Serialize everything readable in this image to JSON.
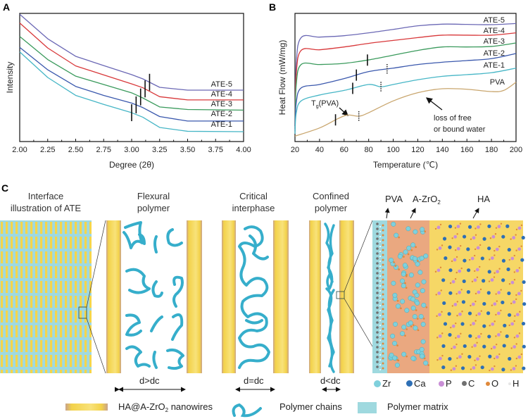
{
  "panels": {
    "a": "A",
    "b": "B",
    "c": "C"
  },
  "chart_data": [
    {
      "type": "line",
      "panel": "A",
      "title": "",
      "xlabel": "Degree (2θ)",
      "ylabel": "Intensity",
      "xlim": [
        2.0,
        4.0
      ],
      "ylim": [
        0,
        100
      ],
      "xticks": [
        "2.00",
        "2.25",
        "2.50",
        "2.75",
        "3.00",
        "3.25",
        "3.50",
        "3.75",
        "4.00"
      ],
      "x": [
        2.0,
        2.25,
        2.5,
        2.75,
        3.0,
        3.1,
        3.25,
        3.5,
        4.0
      ],
      "series": [
        {
          "name": "ATE-5",
          "color": "#6b68b5",
          "values": [
            99.3,
            80.2,
            66.5,
            59.3,
            52.2,
            48.9,
            42.3,
            40.1,
            40.1
          ],
          "marker_x": 3.16
        },
        {
          "name": "ATE-4",
          "color": "#d8383a",
          "values": [
            92.5,
            73,
            59,
            52,
            45,
            42,
            35,
            32.5,
            32.5
          ],
          "marker_x": 3.12
        },
        {
          "name": "ATE-3",
          "color": "#3a9a5c",
          "values": [
            82,
            64,
            51,
            44.5,
            38,
            34,
            27,
            25,
            24.5
          ],
          "marker_x": 3.08
        },
        {
          "name": "ATE-2",
          "color": "#3a58ad",
          "values": [
            73.5,
            56,
            43,
            36,
            30,
            26.5,
            19.5,
            16,
            16
          ],
          "marker_x": 3.04
        },
        {
          "name": "ATE-1",
          "color": "#46b6c6",
          "values": [
            70,
            50,
            36,
            29,
            22.5,
            19,
            11,
            8,
            7.7
          ],
          "marker_x": 3.0
        }
      ],
      "legend": "right, next to curves"
    },
    {
      "type": "line",
      "panel": "B",
      "title": "",
      "xlabel": "Temperature (℃)",
      "ylabel": "Heat Flow (mW/mg)",
      "xlim": [
        20,
        200
      ],
      "ylim": [
        0,
        100
      ],
      "xticks": [
        "20",
        "40",
        "60",
        "80",
        "100",
        "120",
        "140",
        "160",
        "180",
        "200"
      ],
      "series": [
        {
          "name": "ATE-5",
          "color": "#6b68b5",
          "x": [
            20,
            21,
            25,
            40,
            60,
            80,
            100,
            120,
            140,
            160,
            180,
            200
          ],
          "values": [
            12,
            60,
            81.1,
            81.5,
            82.6,
            84.8,
            87.5,
            90.3,
            91.6,
            91.4,
            91.2,
            92.1
          ],
          "solid_marker": null,
          "dotted_marker": null
        },
        {
          "name": "ATE-4",
          "color": "#d8383a",
          "x": [
            20,
            21,
            25,
            40,
            60,
            80,
            100,
            120,
            140,
            160,
            180,
            200
          ],
          "values": [
            12,
            52,
            71.1,
            71.6,
            73.8,
            76.6,
            78.9,
            81.1,
            83,
            83,
            83,
            84.8
          ],
          "solid_marker": null,
          "dotted_marker": null
        },
        {
          "name": "ATE-3",
          "color": "#3a9a5c",
          "x": [
            20,
            21,
            25,
            40,
            60,
            80,
            100,
            120,
            140,
            160,
            180,
            200
          ],
          "values": [
            10,
            44,
            60.1,
            60.1,
            61,
            63.7,
            67.4,
            71.1,
            73.8,
            73.8,
            74.2,
            76.9
          ],
          "solid_marker": 79,
          "dotted_marker": null
        },
        {
          "name": "ATE-2",
          "color": "#3a58ad",
          "x": [
            20,
            21,
            25,
            40,
            60,
            80,
            100,
            120,
            140,
            160,
            180,
            200
          ],
          "values": [
            8,
            30,
            41.8,
            44.5,
            49.1,
            54.6,
            57.3,
            60.1,
            61.9,
            63.2,
            64.7,
            68.7
          ],
          "solid_marker": 70,
          "dotted_marker": 95
        },
        {
          "name": "ATE-1",
          "color": "#46b6c6",
          "x": [
            20,
            21,
            25,
            40,
            60,
            80,
            90,
            100,
            120,
            140,
            160,
            180,
            200
          ],
          "values": [
            6,
            22,
            31.7,
            36.3,
            39.9,
            44.5,
            42.7,
            44.5,
            48.2,
            50.9,
            52.2,
            53.7,
            57.3
          ],
          "solid_marker": 67,
          "dotted_marker": 90
        },
        {
          "name": "PVA",
          "color": "#c9a66e",
          "x": [
            20,
            40,
            55,
            63,
            72,
            80,
            100,
            120,
            140,
            160,
            180,
            190,
            200
          ],
          "values": [
            4.2,
            10.6,
            17.9,
            20.7,
            19.8,
            22.5,
            31.7,
            38.1,
            41.2,
            40.8,
            39,
            39.9,
            46.3
          ],
          "solid_marker": 53,
          "dotted_marker": 72
        }
      ],
      "annotations": {
        "tg_main": "T",
        "tg_sub": "g",
        "tg_rest": "(PVA)",
        "water_line1": "loss of free",
        "water_line2": "or bound water"
      }
    }
  ],
  "panel_c": {
    "titles": [
      {
        "line1": "Interface",
        "line2": "illustration of ATE"
      },
      {
        "line1": "Flexural",
        "line2": "polymer"
      },
      {
        "line1": "Critical",
        "line2": "interphase"
      },
      {
        "line1": "Confined",
        "line2": "polymer"
      }
    ],
    "distances": [
      "d>dc",
      "d=dc",
      "d<dc"
    ],
    "layer_labels": {
      "pva": "PVA",
      "azro_main": "A-ZrO",
      "azro_sub": "2",
      "ha": "HA"
    },
    "atoms": [
      {
        "symbol": "Zr",
        "color": "#7fd0dc"
      },
      {
        "symbol": "Ca",
        "color": "#2e6fb5"
      },
      {
        "symbol": "P",
        "color": "#c98fd6"
      },
      {
        "symbol": "C",
        "color": "#707070"
      },
      {
        "symbol": "O",
        "color": "#e0893a"
      },
      {
        "symbol": "H",
        "color": "#e6e6e6"
      }
    ],
    "legend": {
      "nanowires_main": "HA@A-ZrO",
      "nanowires_sub": "2",
      "nanowires_rest": " nanowires",
      "chains": "Polymer chains",
      "matrix": "Polymer matrix"
    },
    "colors": {
      "matrix": "#9fd9df",
      "chain": "#36aecb",
      "wire": "#f5d54a",
      "wire_edge": "#c9a38a",
      "interphase": "#eaa880",
      "ha": "#f6d766"
    }
  }
}
